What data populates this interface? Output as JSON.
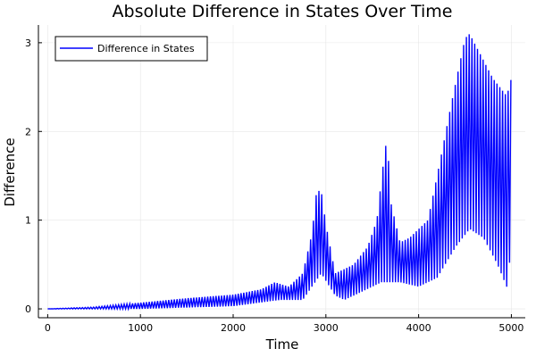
{
  "chart_data": {
    "type": "line",
    "title": "Absolute Difference in States Over Time",
    "xlabel": "Time",
    "ylabel": "Difference",
    "xlim": [
      -100,
      5150
    ],
    "ylim": [
      -0.1,
      3.2
    ],
    "xticks": [
      0,
      1000,
      2000,
      3000,
      4000,
      5000
    ],
    "xtick_labels": [
      "0",
      "1000",
      "2000",
      "3000",
      "4000",
      "5000"
    ],
    "yticks": [
      0,
      1,
      2,
      3
    ],
    "ytick_labels": [
      "0",
      "1",
      "2",
      "3"
    ],
    "grid": true,
    "legend": {
      "position": "top-left",
      "entries": [
        "Difference in States"
      ]
    },
    "series": [
      {
        "name": "Difference in States",
        "color": "#0000ff",
        "oscillation_period": 30,
        "upper_envelope": [
          [
            0,
            0
          ],
          [
            500,
            0.02
          ],
          [
            1000,
            0.07
          ],
          [
            1500,
            0.12
          ],
          [
            2000,
            0.16
          ],
          [
            2300,
            0.22
          ],
          [
            2450,
            0.3
          ],
          [
            2600,
            0.25
          ],
          [
            2750,
            0.4
          ],
          [
            2850,
            0.85
          ],
          [
            2900,
            1.33
          ],
          [
            2950,
            1.33
          ],
          [
            3000,
            0.95
          ],
          [
            3100,
            0.4
          ],
          [
            3300,
            0.5
          ],
          [
            3450,
            0.7
          ],
          [
            3550,
            1.0
          ],
          [
            3620,
            1.65
          ],
          [
            3660,
            1.95
          ],
          [
            3700,
            1.2
          ],
          [
            3800,
            0.75
          ],
          [
            3900,
            0.8
          ],
          [
            4100,
            1.0
          ],
          [
            4200,
            1.5
          ],
          [
            4350,
            2.3
          ],
          [
            4500,
            3.05
          ],
          [
            4550,
            3.1
          ],
          [
            4650,
            2.9
          ],
          [
            4800,
            2.6
          ],
          [
            4950,
            2.4
          ],
          [
            5000,
            2.6
          ]
        ],
        "lower_envelope": [
          [
            0,
            0
          ],
          [
            1000,
            0.0
          ],
          [
            2000,
            0.03
          ],
          [
            2500,
            0.1
          ],
          [
            2750,
            0.1
          ],
          [
            2950,
            0.4
          ],
          [
            3100,
            0.15
          ],
          [
            3200,
            0.1
          ],
          [
            3400,
            0.2
          ],
          [
            3600,
            0.3
          ],
          [
            3800,
            0.3
          ],
          [
            4000,
            0.25
          ],
          [
            4200,
            0.35
          ],
          [
            4400,
            0.7
          ],
          [
            4550,
            0.9
          ],
          [
            4700,
            0.8
          ],
          [
            4850,
            0.5
          ],
          [
            4950,
            0.25
          ],
          [
            5000,
            0.7
          ]
        ]
      }
    ]
  }
}
